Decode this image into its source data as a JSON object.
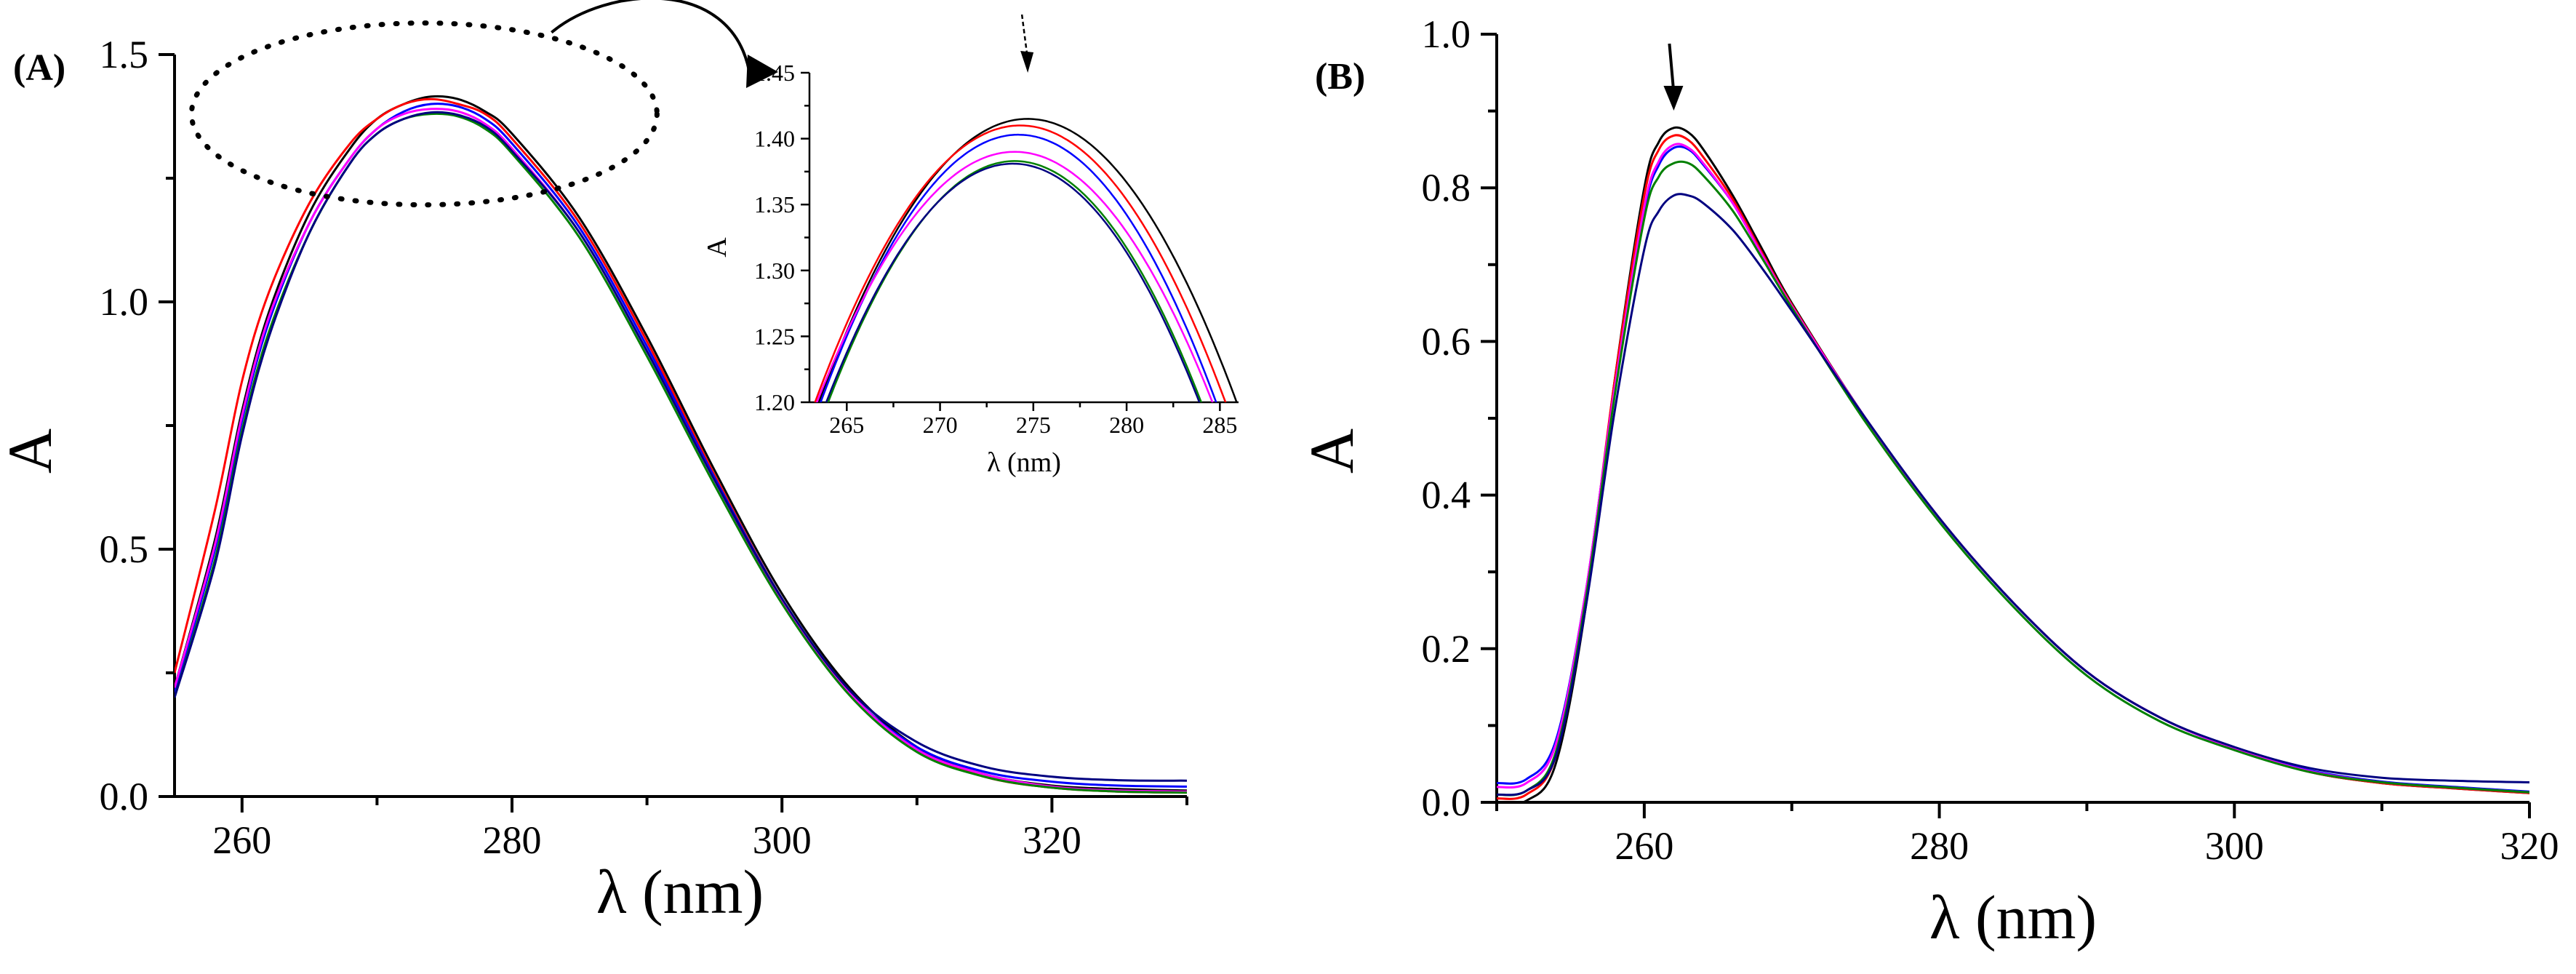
{
  "chart_data": [
    {
      "panel": "(A)",
      "type": "line",
      "xlabel": "λ (nm)",
      "ylabel": "A",
      "xlim": [
        255,
        330
      ],
      "ylim": [
        0,
        1.5
      ],
      "xticks": [
        260,
        280,
        300,
        320
      ],
      "yticks": [
        0.0,
        0.5,
        1.0,
        1.5
      ],
      "ytick_labels": [
        "0.0",
        "0.5",
        "1.0",
        "1.5"
      ],
      "grid": false,
      "annotations": [
        "dotted ellipse around the band maximum",
        "curved arrow pointing to the inset"
      ],
      "series": [
        {
          "color": "#000000",
          "x": [
            255,
            258,
            260,
            262,
            265,
            268,
            270,
            272,
            274,
            276,
            278,
            280,
            285,
            290,
            295,
            300,
            305,
            310,
            315,
            320,
            325,
            330
          ],
          "values": [
            0.22,
            0.52,
            0.78,
            0.98,
            1.18,
            1.31,
            1.37,
            1.4,
            1.415,
            1.41,
            1.385,
            1.34,
            1.17,
            0.93,
            0.66,
            0.41,
            0.22,
            0.1,
            0.045,
            0.022,
            0.015,
            0.012
          ]
        },
        {
          "color": "#ff0000",
          "x": [
            255,
            258,
            260,
            262,
            265,
            268,
            270,
            272,
            274,
            276,
            278,
            280,
            285,
            290,
            295,
            300,
            305,
            310,
            315,
            320,
            325,
            330
          ],
          "values": [
            0.25,
            0.58,
            0.84,
            1.02,
            1.2,
            1.32,
            1.37,
            1.4,
            1.41,
            1.4,
            1.38,
            1.33,
            1.16,
            0.92,
            0.65,
            0.4,
            0.21,
            0.095,
            0.04,
            0.018,
            0.01,
            0.008
          ]
        },
        {
          "color": "#0000ff",
          "x": [
            255,
            258,
            260,
            262,
            265,
            268,
            270,
            272,
            274,
            276,
            278,
            280,
            285,
            290,
            295,
            300,
            305,
            310,
            315,
            320,
            325,
            330
          ],
          "values": [
            0.21,
            0.5,
            0.76,
            0.96,
            1.16,
            1.29,
            1.35,
            1.385,
            1.4,
            1.395,
            1.37,
            1.32,
            1.15,
            0.91,
            0.645,
            0.4,
            0.21,
            0.1,
            0.05,
            0.03,
            0.022,
            0.02
          ]
        },
        {
          "color": "#ff00ff",
          "x": [
            255,
            258,
            260,
            262,
            265,
            268,
            270,
            272,
            274,
            276,
            278,
            280,
            285,
            290,
            295,
            300,
            305,
            310,
            315,
            320,
            325,
            330
          ],
          "values": [
            0.22,
            0.51,
            0.77,
            0.97,
            1.16,
            1.29,
            1.35,
            1.38,
            1.39,
            1.385,
            1.36,
            1.31,
            1.14,
            0.9,
            0.64,
            0.395,
            0.21,
            0.095,
            0.045,
            0.02,
            0.012,
            0.01
          ]
        },
        {
          "color": "#008000",
          "x": [
            255,
            258,
            260,
            262,
            265,
            268,
            270,
            272,
            274,
            276,
            278,
            280,
            285,
            290,
            295,
            300,
            305,
            310,
            315,
            320,
            325,
            330
          ],
          "values": [
            0.2,
            0.48,
            0.74,
            0.94,
            1.14,
            1.28,
            1.34,
            1.37,
            1.38,
            1.375,
            1.35,
            1.3,
            1.13,
            0.89,
            0.63,
            0.39,
            0.205,
            0.09,
            0.04,
            0.018,
            0.01,
            0.008
          ]
        },
        {
          "color": "#000080",
          "x": [
            255,
            258,
            260,
            262,
            265,
            268,
            270,
            272,
            274,
            276,
            278,
            280,
            285,
            290,
            295,
            300,
            305,
            310,
            315,
            320,
            325,
            330
          ],
          "values": [
            0.2,
            0.47,
            0.73,
            0.93,
            1.14,
            1.28,
            1.34,
            1.37,
            1.383,
            1.378,
            1.355,
            1.305,
            1.14,
            0.9,
            0.64,
            0.4,
            0.215,
            0.11,
            0.06,
            0.04,
            0.033,
            0.032
          ]
        }
      ]
    },
    {
      "panel": "inset",
      "type": "line",
      "xlabel": "λ (nm)",
      "ylabel": "A",
      "xlim": [
        263,
        286
      ],
      "ylim": [
        1.2,
        1.45
      ],
      "xticks": [
        265,
        270,
        275,
        280,
        285
      ],
      "yticks": [
        1.2,
        1.25,
        1.3,
        1.35,
        1.4,
        1.45
      ],
      "ytick_labels": [
        "1.20",
        "1.25",
        "1.30",
        "1.35",
        "1.40",
        "1.45"
      ],
      "arrow_at_x": 274.7,
      "series": [
        {
          "color": "#000000",
          "peak_x": 274.7,
          "peak_y": 1.415,
          "half_width": 11.2
        },
        {
          "color": "#ff0000",
          "peak_x": 274.3,
          "peak_y": 1.41,
          "half_width": 11.0
        },
        {
          "color": "#0000ff",
          "peak_x": 274.2,
          "peak_y": 1.403,
          "half_width": 10.6
        },
        {
          "color": "#ff00ff",
          "peak_x": 274.0,
          "peak_y": 1.39,
          "half_width": 10.6
        },
        {
          "color": "#008000",
          "peak_x": 274.0,
          "peak_y": 1.383,
          "half_width": 10.0
        },
        {
          "color": "#000080",
          "peak_x": 273.9,
          "peak_y": 1.381,
          "half_width": 10.0
        }
      ]
    },
    {
      "panel": "(B)",
      "type": "line",
      "xlabel": "λ (nm)",
      "ylabel": "A",
      "xlim": [
        250,
        320
      ],
      "ylim": [
        0,
        1.0
      ],
      "xticks": [
        260,
        280,
        300,
        320
      ],
      "yticks": [
        0.0,
        0.2,
        0.4,
        0.6,
        0.8,
        1.0
      ],
      "ytick_labels": [
        "0.0",
        "0.2",
        "0.4",
        "0.6",
        "0.8",
        "1.0"
      ],
      "grid": false,
      "arrow_at_x": 262,
      "series": [
        {
          "color": "#000000",
          "x": [
            250,
            252,
            254,
            256,
            258,
            260,
            261,
            262,
            263,
            264,
            266,
            268,
            270,
            275,
            280,
            285,
            290,
            295,
            300,
            305,
            310,
            315,
            320
          ],
          "values": [
            0.0,
            0.002,
            0.05,
            0.25,
            0.55,
            0.8,
            0.86,
            0.878,
            0.872,
            0.85,
            0.79,
            0.72,
            0.65,
            0.5,
            0.37,
            0.26,
            0.17,
            0.11,
            0.07,
            0.04,
            0.025,
            0.018,
            0.012
          ]
        },
        {
          "color": "#ff0000",
          "x": [
            250,
            252,
            254,
            256,
            258,
            260,
            261,
            262,
            263,
            264,
            266,
            268,
            270,
            275,
            280,
            285,
            290,
            295,
            300,
            305,
            310,
            315,
            320
          ],
          "values": [
            0.005,
            0.01,
            0.06,
            0.26,
            0.55,
            0.79,
            0.85,
            0.868,
            0.862,
            0.84,
            0.785,
            0.715,
            0.648,
            0.5,
            0.37,
            0.26,
            0.17,
            0.11,
            0.07,
            0.04,
            0.025,
            0.018,
            0.012
          ]
        },
        {
          "color": "#0000ff",
          "x": [
            250,
            252,
            254,
            256,
            258,
            260,
            261,
            262,
            263,
            264,
            266,
            268,
            270,
            275,
            280,
            285,
            290,
            295,
            300,
            305,
            310,
            315,
            320
          ],
          "values": [
            0.025,
            0.03,
            0.08,
            0.27,
            0.54,
            0.77,
            0.83,
            0.852,
            0.85,
            0.83,
            0.78,
            0.712,
            0.646,
            0.5,
            0.37,
            0.26,
            0.17,
            0.11,
            0.07,
            0.042,
            0.027,
            0.02,
            0.014
          ]
        },
        {
          "color": "#ff00ff",
          "x": [
            250,
            252,
            254,
            256,
            258,
            260,
            261,
            262,
            263,
            264,
            266,
            268,
            270,
            275,
            280,
            285,
            290,
            295,
            300,
            305,
            310,
            315,
            320
          ],
          "values": [
            0.02,
            0.025,
            0.075,
            0.27,
            0.54,
            0.775,
            0.835,
            0.856,
            0.852,
            0.832,
            0.78,
            0.712,
            0.646,
            0.5,
            0.37,
            0.26,
            0.17,
            0.11,
            0.07,
            0.041,
            0.026,
            0.019,
            0.013
          ]
        },
        {
          "color": "#008000",
          "x": [
            250,
            252,
            254,
            256,
            258,
            260,
            261,
            262,
            263,
            264,
            266,
            268,
            270,
            275,
            280,
            285,
            290,
            295,
            300,
            305,
            310,
            315,
            320
          ],
          "values": [
            0.01,
            0.015,
            0.065,
            0.26,
            0.53,
            0.76,
            0.815,
            0.832,
            0.832,
            0.816,
            0.77,
            0.708,
            0.644,
            0.495,
            0.365,
            0.255,
            0.165,
            0.105,
            0.068,
            0.04,
            0.026,
            0.019,
            0.013
          ]
        },
        {
          "color": "#000080",
          "x": [
            250,
            252,
            254,
            256,
            258,
            260,
            261,
            262,
            263,
            264,
            266,
            268,
            270,
            275,
            280,
            285,
            290,
            295,
            300,
            305,
            310,
            315,
            320
          ],
          "values": [
            0.01,
            0.015,
            0.06,
            0.25,
            0.51,
            0.72,
            0.77,
            0.79,
            0.79,
            0.78,
            0.745,
            0.695,
            0.64,
            0.5,
            0.37,
            0.26,
            0.17,
            0.11,
            0.072,
            0.045,
            0.032,
            0.028,
            0.026
          ]
        }
      ]
    }
  ]
}
